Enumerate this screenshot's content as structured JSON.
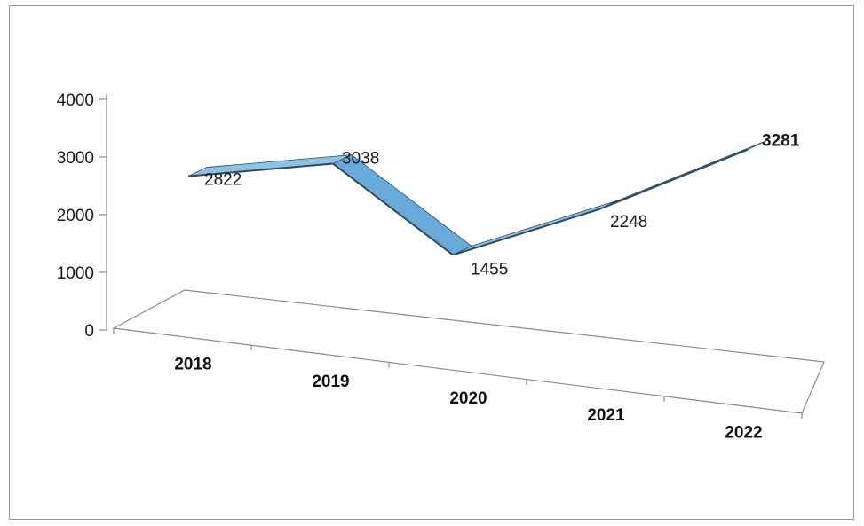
{
  "chart_data": {
    "type": "line",
    "style": "3d-ribbon",
    "categories": [
      "2018",
      "2019",
      "2020",
      "2021",
      "2022"
    ],
    "values": [
      2822,
      3038,
      1455,
      2248,
      3281
    ],
    "data_labels": [
      "2822",
      "3038",
      "1455",
      "2248",
      "3281"
    ],
    "y_ticks": [
      "0",
      "1000",
      "2000",
      "3000",
      "4000"
    ],
    "ylim": [
      0,
      4000
    ],
    "grid": false,
    "legend": "none",
    "colors": {
      "ribbon_top": "#8fc1e3",
      "ribbon_face": "#6aaad8",
      "ribbon_edge": "#2d4a60",
      "axis": "#8a8a8a"
    }
  }
}
